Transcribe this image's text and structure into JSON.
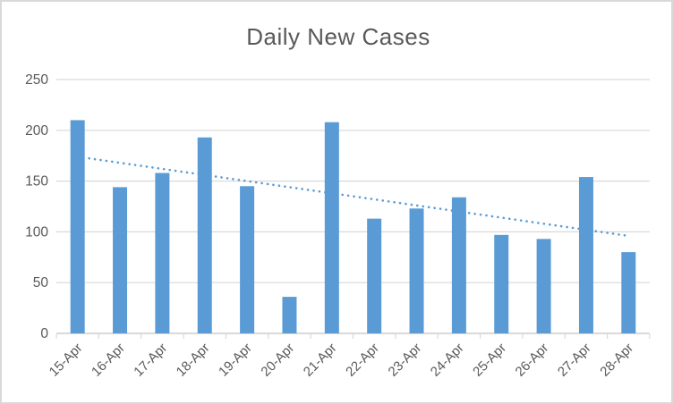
{
  "window": {
    "background": "#ffffff",
    "border_color": "#d9d9d9"
  },
  "chart_data": {
    "type": "bar",
    "title": "Daily New Cases",
    "categories": [
      "15-Apr",
      "16-Apr",
      "17-Apr",
      "18-Apr",
      "19-Apr",
      "20-Apr",
      "21-Apr",
      "22-Apr",
      "23-Apr",
      "24-Apr",
      "25-Apr",
      "26-Apr",
      "27-Apr",
      "28-Apr"
    ],
    "values": [
      210,
      144,
      158,
      193,
      145,
      36,
      208,
      113,
      123,
      134,
      97,
      93,
      154,
      80
    ],
    "xlabel": "",
    "ylabel": "",
    "ylim": [
      0,
      250
    ],
    "yticks": [
      0,
      50,
      100,
      150,
      200,
      250
    ],
    "grid": "horizontal",
    "legend": "none",
    "x_label_rotation_deg": 45,
    "trendline": {
      "type": "linear",
      "style": "dotted",
      "color": "#5b9bd5",
      "start_value": 174,
      "end_value": 96
    },
    "colors": {
      "bar": "#5b9bd5",
      "gridline": "#d9d9d9",
      "axis_line": "#d9d9d9",
      "title_text": "#595959",
      "axis_text": "#595959"
    }
  }
}
